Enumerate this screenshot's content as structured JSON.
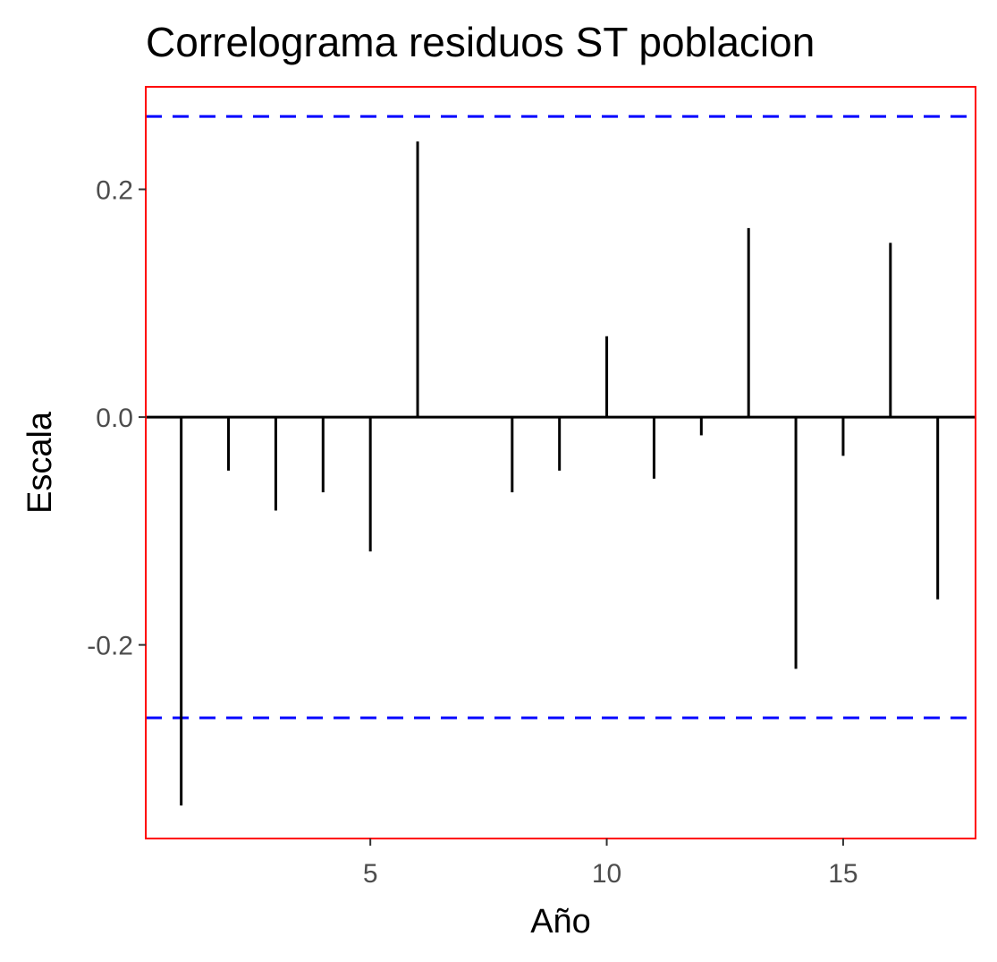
{
  "chart_data": {
    "type": "bar",
    "title": "Correlograma residuos ST poblacion",
    "xlabel": "Año",
    "ylabel": "Escala",
    "x": [
      1,
      2,
      3,
      4,
      5,
      6,
      7,
      8,
      9,
      10,
      11,
      12,
      13,
      14,
      15,
      16,
      17
    ],
    "values": [
      -0.341,
      -0.047,
      -0.082,
      -0.066,
      -0.118,
      0.242,
      0.0,
      -0.066,
      -0.047,
      0.071,
      -0.054,
      -0.016,
      0.166,
      -0.221,
      -0.034,
      0.153,
      -0.16
    ],
    "xlim": [
      0.25,
      17.8
    ],
    "ylim": [
      -0.37,
      0.29
    ],
    "x_ticks": [
      5,
      10,
      15
    ],
    "y_ticks": [
      -0.2,
      0.0,
      0.2
    ],
    "y_tick_labels": [
      "-0.2",
      "0.0",
      "0.2"
    ],
    "confidence_bounds": [
      -0.264,
      0.264
    ],
    "grid": false,
    "colors": {
      "bars": "#000000",
      "bounds": "#0000ff",
      "panel_border": "#ff0000",
      "tick_text": "#4d4d4d"
    }
  }
}
